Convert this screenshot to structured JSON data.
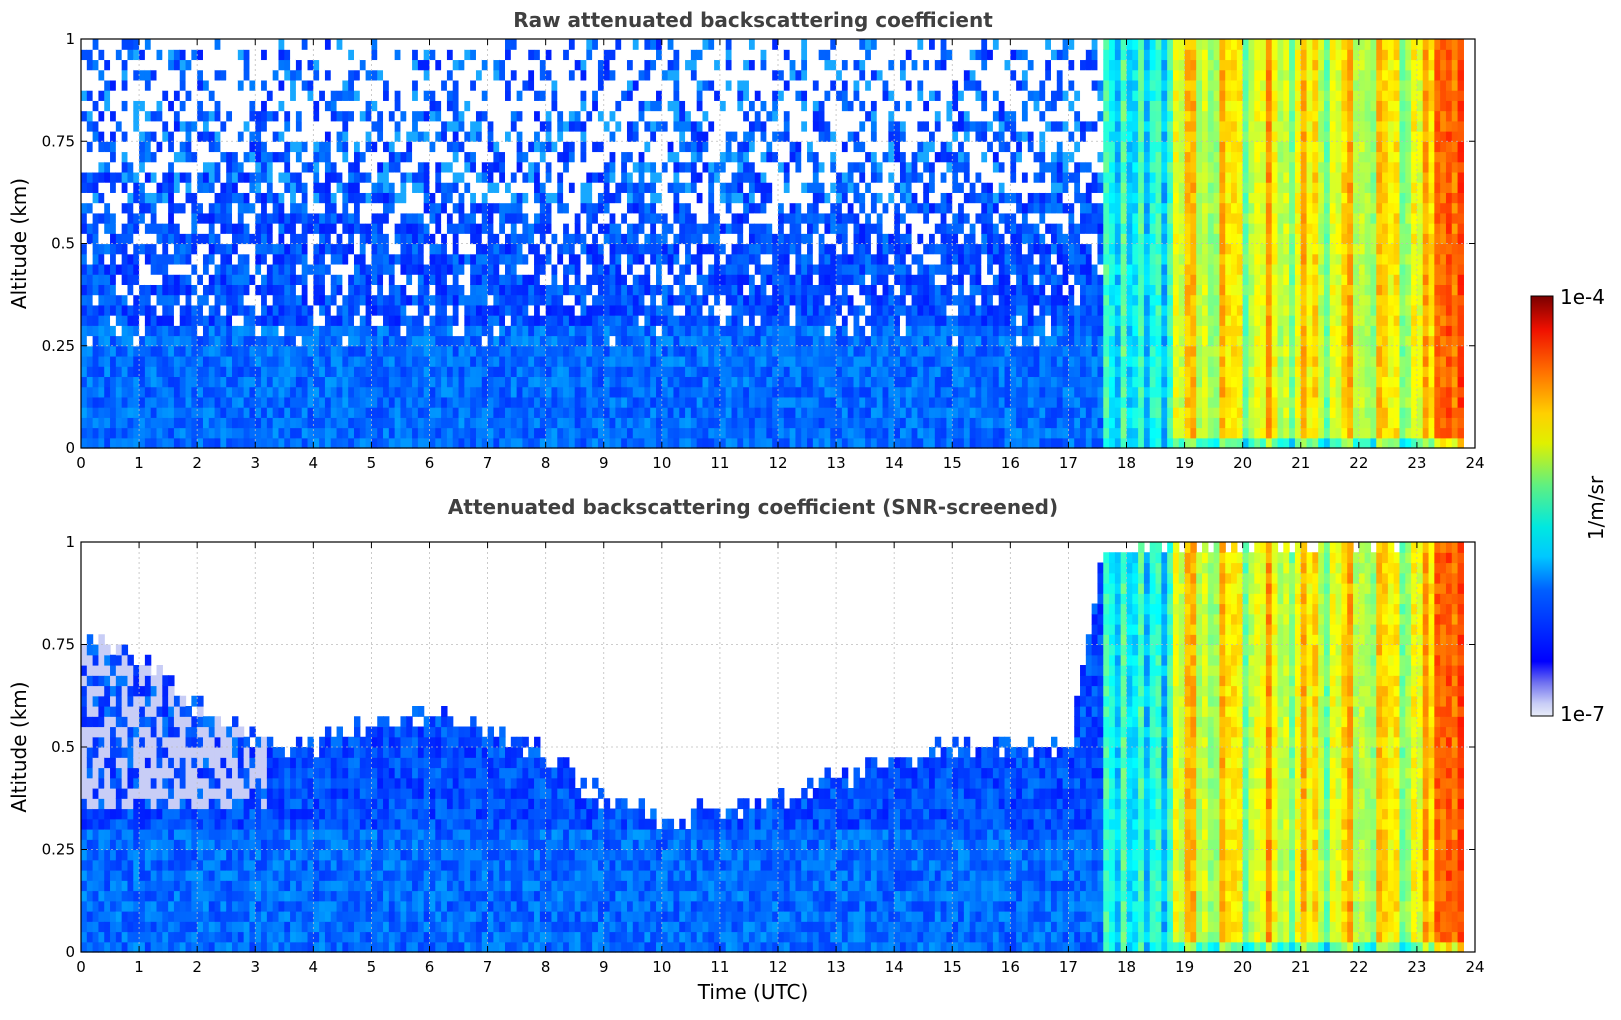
{
  "chart_data": [
    {
      "type": "heatmap",
      "title": "Raw attenuated backscattering coefficient",
      "xlabel": "",
      "ylabel": "Altitude (km)",
      "xlim": [
        0,
        24
      ],
      "ylim": [
        0,
        1
      ],
      "x_ticks": [
        "0",
        "1",
        "2",
        "3",
        "4",
        "5",
        "6",
        "7",
        "8",
        "9",
        "10",
        "11",
        "12",
        "13",
        "14",
        "15",
        "16",
        "17",
        "18",
        "19",
        "20",
        "21",
        "22",
        "23",
        "24"
      ],
      "y_ticks": [
        "0",
        "0.25",
        "0.5",
        "0.75",
        "1"
      ],
      "grid": true,
      "screened": false,
      "clear_sky_top_km": [
        {
          "t": 0,
          "top": 1.0
        },
        {
          "t": 17.5,
          "top": 1.0
        }
      ]
    },
    {
      "type": "heatmap",
      "title": "Attenuated backscattering coefficient (SNR-screened)",
      "xlabel": "Time (UTC)",
      "ylabel": "Altitude (km)",
      "xlim": [
        0,
        24
      ],
      "ylim": [
        0,
        1
      ],
      "x_ticks": [
        "0",
        "1",
        "2",
        "3",
        "4",
        "5",
        "6",
        "7",
        "8",
        "9",
        "10",
        "11",
        "12",
        "13",
        "14",
        "15",
        "16",
        "17",
        "18",
        "19",
        "20",
        "21",
        "22",
        "23",
        "24"
      ],
      "y_ticks": [
        "0",
        "0.25",
        "0.5",
        "0.75",
        "1"
      ],
      "grid": true,
      "screened": true,
      "valid_signal_top_km": [
        {
          "t": 0,
          "top": 0.78
        },
        {
          "t": 1,
          "top": 0.72
        },
        {
          "t": 2,
          "top": 0.6
        },
        {
          "t": 3,
          "top": 0.52
        },
        {
          "t": 4,
          "top": 0.5
        },
        {
          "t": 5,
          "top": 0.55
        },
        {
          "t": 6,
          "top": 0.58
        },
        {
          "t": 7,
          "top": 0.55
        },
        {
          "t": 8,
          "top": 0.48
        },
        {
          "t": 9,
          "top": 0.38
        },
        {
          "t": 10,
          "top": 0.33
        },
        {
          "t": 11,
          "top": 0.34
        },
        {
          "t": 12,
          "top": 0.38
        },
        {
          "t": 13,
          "top": 0.42
        },
        {
          "t": 14,
          "top": 0.47
        },
        {
          "t": 15,
          "top": 0.5
        },
        {
          "t": 16,
          "top": 0.5
        },
        {
          "t": 17,
          "top": 0.48
        },
        {
          "t": 17.6,
          "top": 1.0
        },
        {
          "t": 24,
          "top": 1.0
        }
      ]
    }
  ],
  "colorbar": {
    "label": "1/m/sr",
    "max_label": "1e-4",
    "min_label": "1e-7",
    "scale": "log",
    "range": [
      1e-07,
      0.0001
    ],
    "colormap": "jet",
    "low_color": "#e8ecf8"
  },
  "signal_bands": {
    "cloud_onset_utc": 18.8,
    "aerosol_band_utc": [
      17.6,
      18.8
    ],
    "drizzle_peak_utc": 23.6,
    "data_end_utc": 23.8
  }
}
